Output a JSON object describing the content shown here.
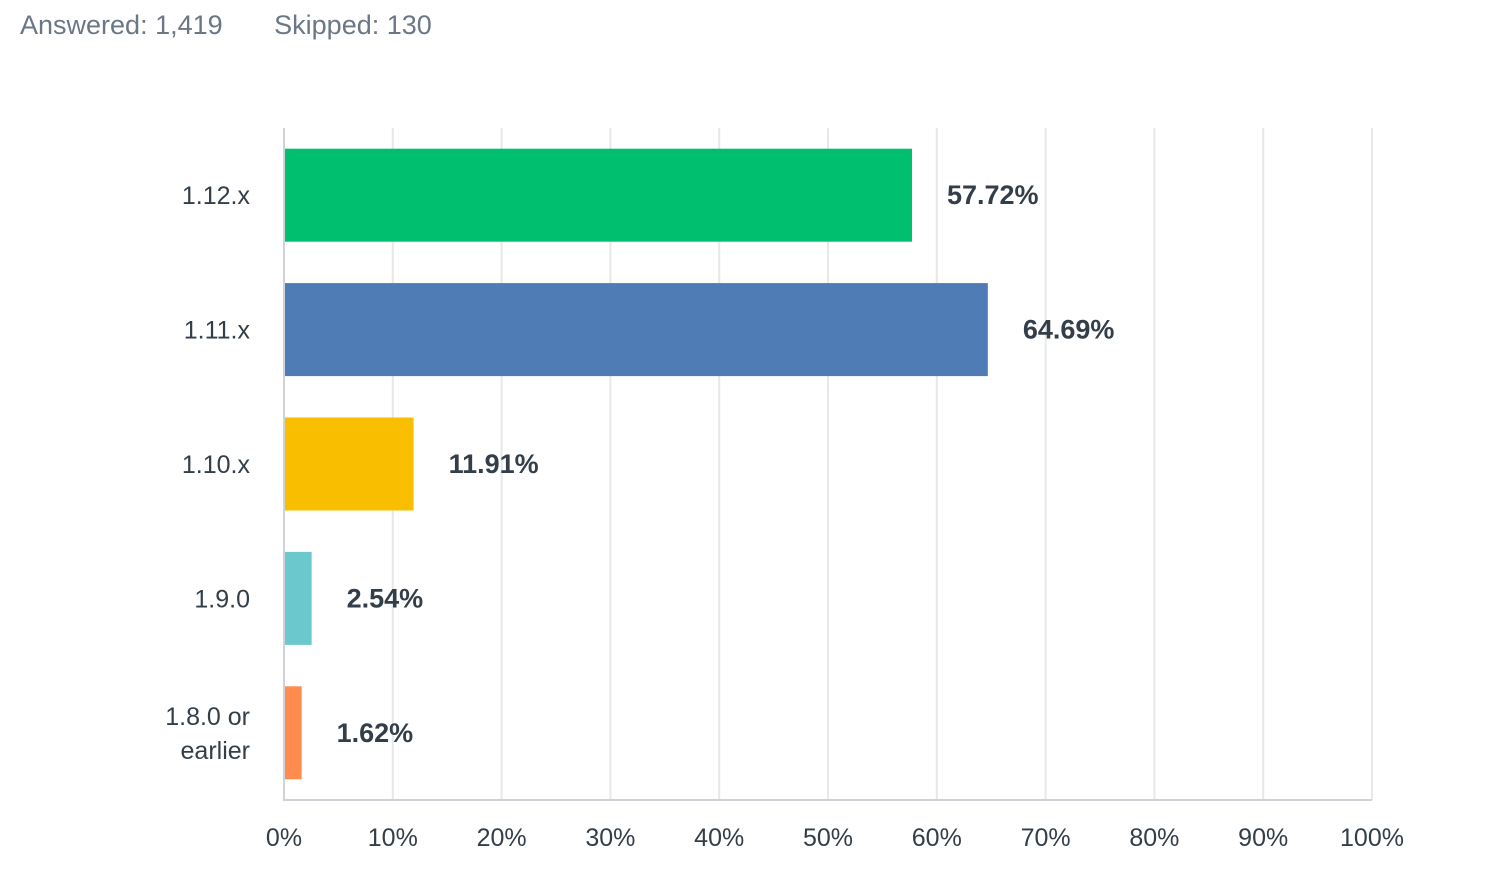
{
  "summary": {
    "answered_label": "Answered: 1,419",
    "skipped_label": "Skipped: 130"
  },
  "chart_data": {
    "type": "bar",
    "orientation": "horizontal",
    "categories": [
      [
        "1.12.x"
      ],
      [
        "1.11.x"
      ],
      [
        "1.10.x"
      ],
      [
        "1.9.0"
      ],
      [
        "1.8.0 or",
        "earlier"
      ]
    ],
    "values": [
      57.72,
      64.69,
      11.91,
      2.54,
      1.62
    ],
    "value_labels": [
      "57.72%",
      "64.69%",
      "11.91%",
      "2.54%",
      "1.62%"
    ],
    "colors": [
      "#00bf6f",
      "#507cb6",
      "#f9be00",
      "#6bc8cd",
      "#ff8b4f"
    ],
    "xlim": [
      0,
      100
    ],
    "x_ticks": [
      "0%",
      "10%",
      "20%",
      "30%",
      "40%",
      "50%",
      "60%",
      "70%",
      "80%",
      "90%",
      "100%"
    ],
    "grid": true,
    "legend": "none",
    "title": "",
    "xlabel": "",
    "ylabel": ""
  }
}
